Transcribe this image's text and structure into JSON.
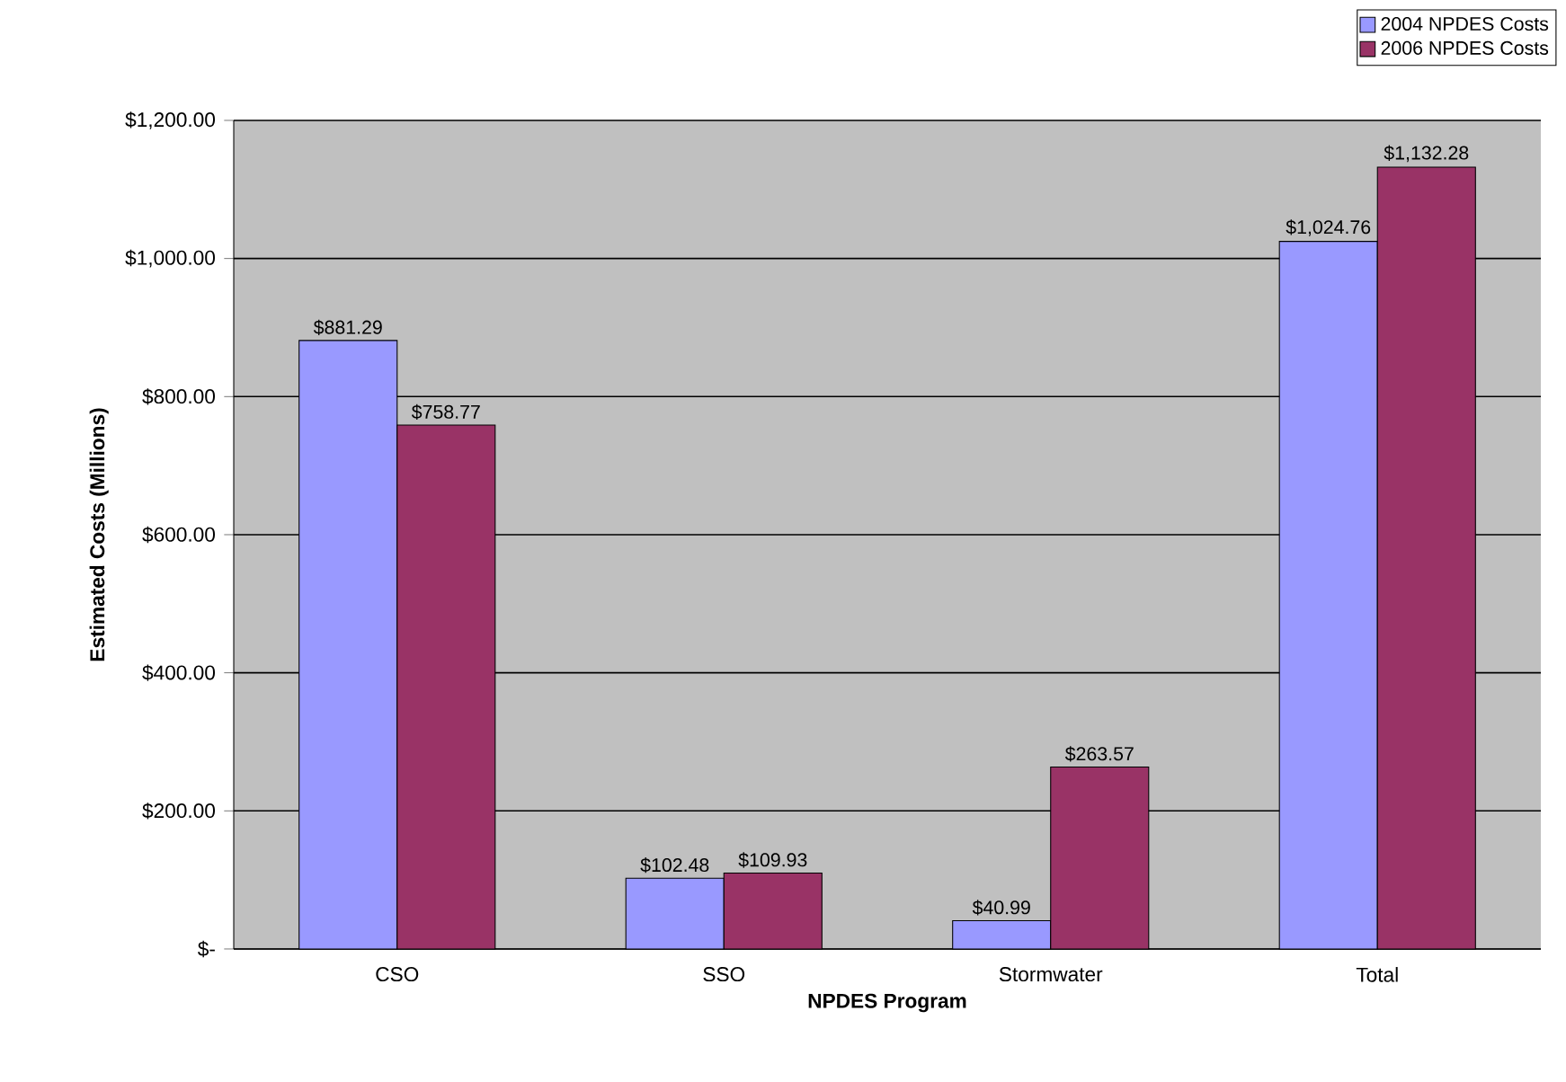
{
  "chart_data": {
    "type": "bar",
    "xlabel": "NPDES Program",
    "ylabel": "Estimated Costs (Millions)",
    "categories": [
      "CSO",
      "SSO",
      "Stormwater",
      "Total"
    ],
    "series": [
      {
        "name": "2004 NPDES Costs",
        "color": "#9999ff",
        "values": [
          881.29,
          102.48,
          40.99,
          1024.76
        ],
        "value_labels": [
          "$881.29",
          "$102.48",
          "$40.99",
          "$1,024.76"
        ]
      },
      {
        "name": "2006 NPDES Costs",
        "color": "#993366",
        "values": [
          758.77,
          109.93,
          263.57,
          1132.28
        ],
        "value_labels": [
          "$758.77",
          "$109.93",
          "$263.57",
          "$1,132.28"
        ]
      }
    ],
    "ylim": [
      0,
      1200
    ],
    "yticks": [
      {
        "value": 0,
        "label": "$-"
      },
      {
        "value": 200,
        "label": "$200.00"
      },
      {
        "value": 400,
        "label": "$400.00"
      },
      {
        "value": 600,
        "label": "$600.00"
      },
      {
        "value": 800,
        "label": "$800.00"
      },
      {
        "value": 1000,
        "label": "$1,000.00"
      },
      {
        "value": 1200,
        "label": "$1,200.00"
      }
    ],
    "grid": "y",
    "legend": "top right"
  }
}
